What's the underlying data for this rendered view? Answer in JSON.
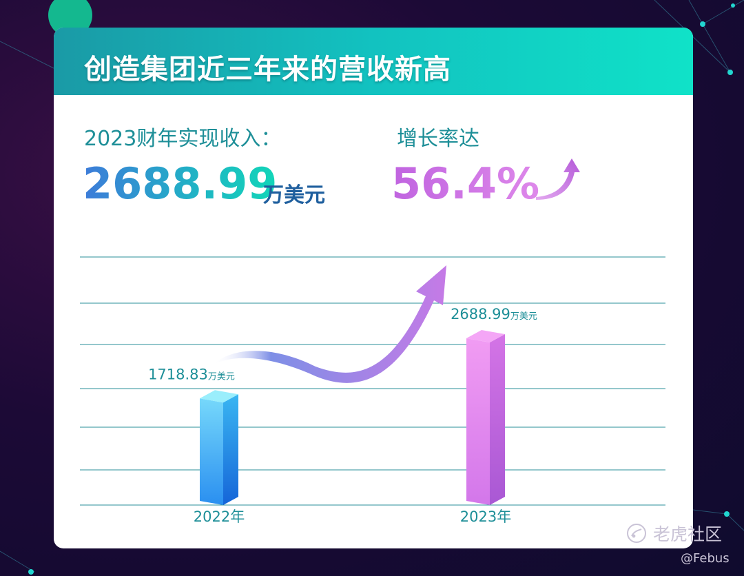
{
  "title": "创造集团近三年来的营收新高",
  "revenue": {
    "label": "2023财年实现收入：",
    "value": "2688.99",
    "unit": "万美元"
  },
  "growth": {
    "label": "增长率达",
    "value": "56.4%"
  },
  "chart_data": {
    "type": "bar",
    "categories": [
      "2022年",
      "2023年"
    ],
    "values": [
      1718.83,
      2688.99
    ],
    "value_labels": [
      "1718.83",
      "2688.99"
    ],
    "value_unit": "万美元",
    "title": "",
    "xlabel": "",
    "ylabel": "",
    "ylim": [
      0,
      4000
    ],
    "grid": true,
    "bar_colors": [
      [
        "#9aeefc",
        "#2fb1f2",
        "#1479e6"
      ],
      [
        "#f4a6f6",
        "#e07cea",
        "#b25ad8"
      ]
    ],
    "trend_arrow": true
  },
  "watermark": {
    "brand": "老虎社区",
    "user": "@Febus"
  },
  "colors": {
    "header_start": "#1a9aa6",
    "header_end": "#10e2c8",
    "accent_teal": "#1e8f98",
    "accent_purple": "#c064e0"
  }
}
